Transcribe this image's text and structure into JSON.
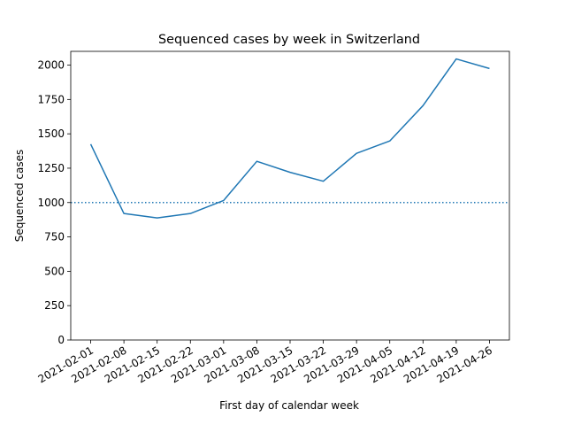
{
  "chart_data": {
    "type": "line",
    "title": "Sequenced cases by week in Switzerland",
    "xlabel": "First day of calendar week",
    "ylabel": "Sequenced cases",
    "categories": [
      "2021-02-01",
      "2021-02-08",
      "2021-02-15",
      "2021-02-22",
      "2021-03-01",
      "2021-03-08",
      "2021-03-15",
      "2021-03-22",
      "2021-03-29",
      "2021-04-05",
      "2021-04-12",
      "2021-04-19",
      "2021-04-26"
    ],
    "series": [
      {
        "values": [
          1425,
          920,
          888,
          920,
          1015,
          1300,
          1220,
          1155,
          1358,
          1448,
          1705,
          2045,
          1975
        ],
        "color": "#1f77b4"
      }
    ],
    "reference_line": {
      "y": 1000,
      "style": "dotted",
      "color": "#1f77b4"
    },
    "yticks": [
      0,
      250,
      500,
      750,
      1000,
      1250,
      1500,
      1750,
      2000
    ],
    "ylim": [
      0,
      2100
    ],
    "grid": false,
    "legend": "none"
  }
}
